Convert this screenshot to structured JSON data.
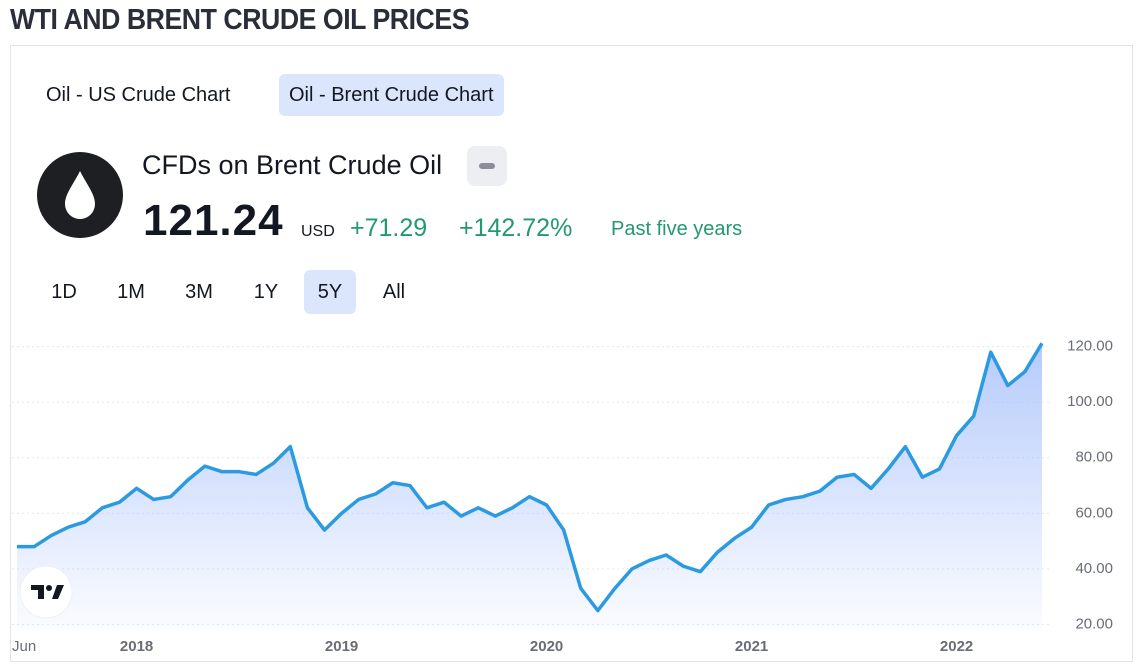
{
  "header": {
    "title": "WTI AND BRENT CRUDE OIL PRICES"
  },
  "tabs": [
    "Oil - US Crude Chart",
    "Oil - Brent Crude Chart"
  ],
  "active_tab": 1,
  "symbol": {
    "name": "CFDs on Brent Crude Oil",
    "price": "121.24",
    "currency": "USD",
    "change": "+71.29",
    "change_percent": "+142.72%",
    "period": "Past five years"
  },
  "ranges": [
    "1D",
    "1M",
    "3M",
    "1Y",
    "5Y",
    "All"
  ],
  "active_range": 4,
  "chart_data": {
    "type": "area",
    "categories": [
      "Jun",
      null,
      null,
      null,
      null,
      null,
      null,
      "2018",
      null,
      null,
      null,
      null,
      null,
      null,
      null,
      null,
      null,
      null,
      null,
      "2019",
      null,
      null,
      null,
      null,
      null,
      null,
      null,
      null,
      null,
      null,
      null,
      "2020",
      null,
      null,
      null,
      null,
      null,
      null,
      null,
      null,
      null,
      null,
      null,
      "2021",
      null,
      null,
      null,
      null,
      null,
      null,
      null,
      null,
      null,
      null,
      null,
      "2022",
      null,
      null,
      null,
      null,
      null
    ],
    "values": [
      48,
      48,
      52,
      55,
      57,
      62,
      64,
      69,
      65,
      66,
      72,
      77,
      75,
      75,
      74,
      78,
      84,
      62,
      54,
      60,
      65,
      67,
      71,
      70,
      62,
      64,
      59,
      62,
      59,
      62,
      66,
      63,
      54,
      33,
      25,
      33,
      40,
      43,
      45,
      41,
      39,
      46,
      51,
      55,
      63,
      65,
      66,
      68,
      73,
      74,
      69,
      76,
      84,
      73,
      76,
      88,
      95,
      118,
      106,
      111,
      121.24
    ],
    "color": "#2b9ae0",
    "ylim": [
      18,
      126
    ],
    "yticks": [
      {
        "value": 20,
        "label": "20.00"
      },
      {
        "value": 40,
        "label": "40.00"
      },
      {
        "value": 60,
        "label": "60.00"
      },
      {
        "value": 80,
        "label": "80.00"
      },
      {
        "value": 100,
        "label": "100.00"
      },
      {
        "value": 120,
        "label": "120.00"
      }
    ],
    "grid": true
  }
}
